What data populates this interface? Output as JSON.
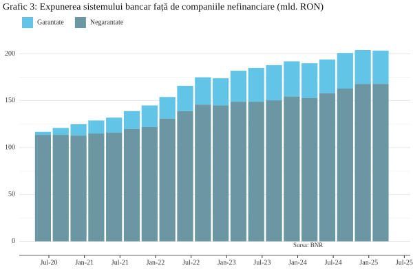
{
  "chart_data": {
    "type": "stacked_bar",
    "title": "Grafic 3: Expunerea sistemului bancar față de companiile nefinanciare (mld. RON)",
    "annotation": "Sursa: BNR",
    "x": [
      "2020-06",
      "2020-09",
      "2020-12",
      "2021-03",
      "2021-06",
      "2021-09",
      "2021-12",
      "2022-03",
      "2022-06",
      "2022-09",
      "2022-12",
      "2023-03",
      "2023-06",
      "2023-09",
      "2023-12",
      "2024-03",
      "2024-06",
      "2024-09",
      "2024-12",
      "2025-03"
    ],
    "series": [
      {
        "name": "Garantate",
        "color": "#62c4e6",
        "values": [
          3.5,
          7.5,
          12,
          14,
          16,
          19,
          23,
          23,
          27,
          29,
          29,
          33,
          36,
          37.5,
          37.5,
          37,
          36,
          38,
          36,
          35.5
        ]
      },
      {
        "name": "Negarantate",
        "color": "#6b97a3",
        "values": [
          113.5,
          113.5,
          113,
          115,
          116,
          120,
          122,
          131,
          139,
          146,
          145,
          149,
          149,
          150.5,
          154.5,
          153,
          158,
          163,
          168,
          168
        ]
      }
    ],
    "xlim": [
      "2020-02",
      "2025-08"
    ],
    "xticks": [
      {
        "value": "2020-07",
        "label": "Jul-20"
      },
      {
        "value": "2021-01",
        "label": "Jan-21"
      },
      {
        "value": "2021-07",
        "label": "Jul-21"
      },
      {
        "value": "2022-01",
        "label": "Jan-22"
      },
      {
        "value": "2022-07",
        "label": "Jul-22"
      },
      {
        "value": "2023-01",
        "label": "Jan-23"
      },
      {
        "value": "2023-07",
        "label": "Jul-23"
      },
      {
        "value": "2024-01",
        "label": "Jan-24"
      },
      {
        "value": "2024-07",
        "label": "Jul-24"
      },
      {
        "value": "2025-01",
        "label": "Jan-25"
      },
      {
        "value": "2025-07",
        "label": "Jul-25"
      }
    ],
    "ylim": [
      -15,
      215
    ],
    "yticks": [
      0,
      50,
      100,
      150,
      200
    ],
    "grid": true
  }
}
